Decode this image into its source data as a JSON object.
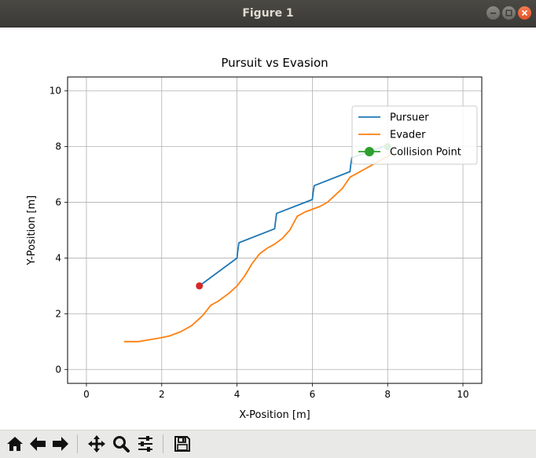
{
  "window": {
    "title": "Figure 1",
    "buttons": [
      "minimize-icon",
      "maximize-icon",
      "close-icon"
    ]
  },
  "toolbar": {
    "items": [
      {
        "name": "home-icon",
        "tooltip": "Reset original view"
      },
      {
        "name": "back-arrow-icon",
        "tooltip": "Back"
      },
      {
        "name": "forward-arrow-icon",
        "tooltip": "Forward"
      },
      {
        "name": "pan-icon",
        "tooltip": "Pan"
      },
      {
        "name": "zoom-icon",
        "tooltip": "Zoom"
      },
      {
        "name": "configure-subplots-icon",
        "tooltip": "Configure subplots"
      },
      {
        "name": "save-icon",
        "tooltip": "Save"
      }
    ]
  },
  "chart_data": {
    "type": "line",
    "title": "Pursuit vs Evasion",
    "xlabel": "X-Position [m]",
    "ylabel": "Y-Position [m]",
    "xlim": [
      -0.5,
      10.5
    ],
    "ylim": [
      -0.5,
      10.5
    ],
    "xticks": [
      0,
      2,
      4,
      6,
      8,
      10
    ],
    "yticks": [
      0,
      2,
      4,
      6,
      8,
      10
    ],
    "grid": true,
    "legend_position": "upper right",
    "series": [
      {
        "name": "Pursuer",
        "color": "#1f77b4",
        "x": [
          3.0,
          4.0,
          4.02,
          4.05,
          5.0,
          5.02,
          5.05,
          6.0,
          6.02,
          6.05,
          7.0,
          7.02,
          7.05,
          8.0
        ],
        "y": [
          3.0,
          4.0,
          4.25,
          4.55,
          5.05,
          5.3,
          5.6,
          6.1,
          6.35,
          6.6,
          7.1,
          7.35,
          7.6,
          8.05
        ]
      },
      {
        "name": "Evader",
        "color": "#ff7f0e",
        "x": [
          1.0,
          1.2,
          1.4,
          1.6,
          1.9,
          2.2,
          2.5,
          2.8,
          3.1,
          3.3,
          3.5,
          3.8,
          4.0,
          4.2,
          4.4,
          4.6,
          4.8,
          5.0,
          5.2,
          5.4,
          5.6,
          5.8,
          6.0,
          6.2,
          6.4,
          6.6,
          6.8,
          7.0,
          7.2,
          7.4,
          7.6,
          7.8,
          8.0,
          8.1
        ],
        "y": [
          1.0,
          1.0,
          1.0,
          1.05,
          1.12,
          1.2,
          1.35,
          1.58,
          1.95,
          2.3,
          2.45,
          2.75,
          3.0,
          3.35,
          3.8,
          4.15,
          4.35,
          4.5,
          4.7,
          5.0,
          5.5,
          5.65,
          5.75,
          5.85,
          6.0,
          6.25,
          6.5,
          6.9,
          7.05,
          7.2,
          7.35,
          7.5,
          7.65,
          7.75
        ]
      }
    ],
    "markers": [
      {
        "name": "start-point",
        "x": 3.0,
        "y": 3.0,
        "color": "#d62728"
      },
      {
        "name": "Collision Point",
        "x": 8.0,
        "y": 8.0,
        "color": "#2ca02c"
      }
    ],
    "legend": [
      {
        "label": "Pursuer",
        "color": "#1f77b4",
        "marker": false
      },
      {
        "label": "Evader",
        "color": "#ff7f0e",
        "marker": false
      },
      {
        "label": "Collision Point",
        "color": "#2ca02c",
        "marker": true
      }
    ]
  }
}
